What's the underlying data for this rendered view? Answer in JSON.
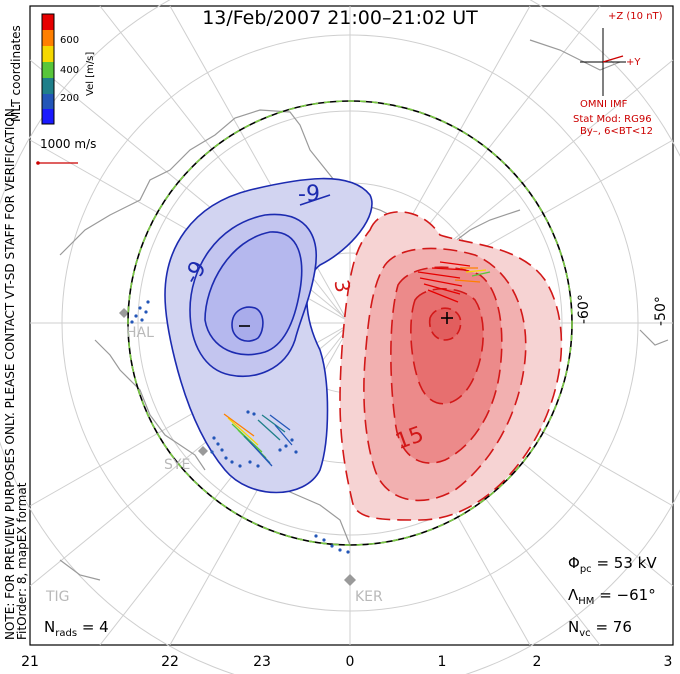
{
  "title": "13/Feb/2007 21:00–21:02 UT",
  "note_vertical": "NOTE: FOR PREVIEW PURPOSES ONLY. PLEASE CONTACT VT-SD STAFF FOR VERIFICATION.",
  "fit_order_vertical": "FitOrder: 8, mapEX format",
  "coordinates_vertical": "MLT coordinates",
  "colorbar": {
    "label": "Vel [m/s]",
    "ticks": [
      "600",
      "400",
      "200"
    ],
    "colors": [
      "#e60000",
      "#ff7f00",
      "#f5d800",
      "#58c63a",
      "#1f7f8a",
      "#2356b8",
      "#1a1aff"
    ]
  },
  "scale_vector": {
    "label": "1000 m/s",
    "color": "#cc0000"
  },
  "imf": {
    "top_label": "+Z (10 nT)",
    "y_label": "+Y",
    "source_label": "OMNI IMF",
    "color": "#cc0000"
  },
  "stat_model": {
    "line1": "Stat Mod: RG96",
    "line2": "By–, 6<BT<12"
  },
  "contour_labels": {
    "neg": "-9",
    "neg2": "-9",
    "pos": "3",
    "pos2": "15",
    "min_marker": "−",
    "max_marker": "+"
  },
  "lat_labels": [
    "-60°",
    "-50°"
  ],
  "stations": [
    "HAL",
    "SYE",
    "TIG",
    "KER"
  ],
  "params": {
    "phi_sym": "Φ",
    "phi_sub": "pc",
    "phi_val": "= 53 kV",
    "lam_sym": "Λ",
    "lam_sub": "HM",
    "lam_val": "= −61°",
    "nvc_sym": "N",
    "nvc_sub": "vc",
    "nvc_val": "= 76",
    "nrads_sym": "N",
    "nrads_sub": "rads",
    "nrads_val": "= 4"
  },
  "mlt_ticks": [
    "21",
    "22",
    "23",
    "0",
    "1",
    "2",
    "3"
  ],
  "colors": {
    "negative_fill": "#d2d4f1",
    "negative_fill_inner": "#b5b8ee",
    "negative_line": "#1c2bb0",
    "positive_fill": "#f6d3d3",
    "positive_fill_mid": "#f2b0b0",
    "positive_fill_inner": "#ec8a8a",
    "positive_line": "#d21818",
    "land": "#9a9a9a",
    "grid": "#cfcfcf",
    "boundary_dash": "#7ac943"
  }
}
